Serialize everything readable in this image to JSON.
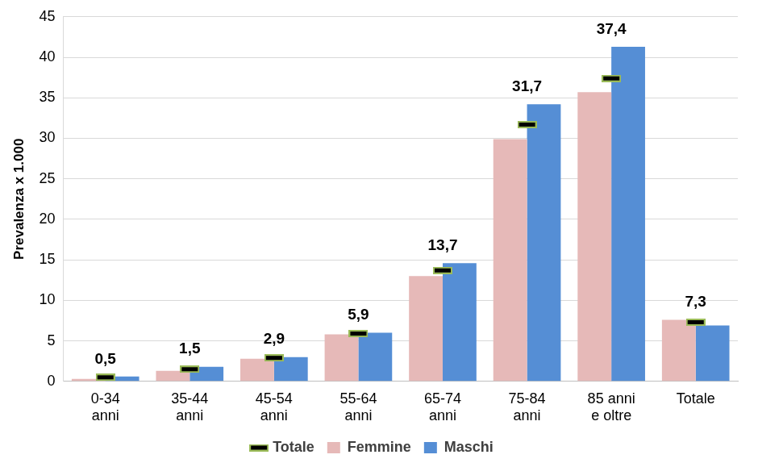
{
  "chart_data": {
    "type": "bar",
    "categories": [
      "0-34\nanni",
      "35-44\nanni",
      "45-54\nanni",
      "55-64\nanni",
      "65-74\nanni",
      "75-84\nanni",
      "85 anni\ne oltre",
      "Totale"
    ],
    "ylabel": "Prevalenza x 1.000",
    "series": [
      {
        "name": "Femmine",
        "color": "#e6b9b8",
        "values": [
          0.3,
          1.3,
          2.8,
          5.8,
          13.0,
          29.9,
          35.7,
          7.6
        ]
      },
      {
        "name": "Maschi",
        "color": "#558ed5",
        "values": [
          0.6,
          1.8,
          3.0,
          6.0,
          14.6,
          34.2,
          41.3,
          6.9
        ]
      },
      {
        "name": "Totale",
        "type": "line",
        "color": "#000000",
        "marker": "dash",
        "line_style": "none",
        "data_labels": true,
        "values": [
          0.5,
          1.5,
          2.9,
          5.9,
          13.7,
          31.7,
          37.4,
          7.3
        ],
        "value_labels": [
          "0,5",
          "1,5",
          "2,9",
          "5,9",
          "13,7",
          "31,7",
          "37,4",
          "7,3"
        ]
      }
    ],
    "ylim": [
      0,
      45
    ],
    "yticks": [
      0,
      5,
      10,
      15,
      20,
      25,
      30,
      35,
      40,
      45
    ],
    "grid": true,
    "legend": "bottom"
  }
}
